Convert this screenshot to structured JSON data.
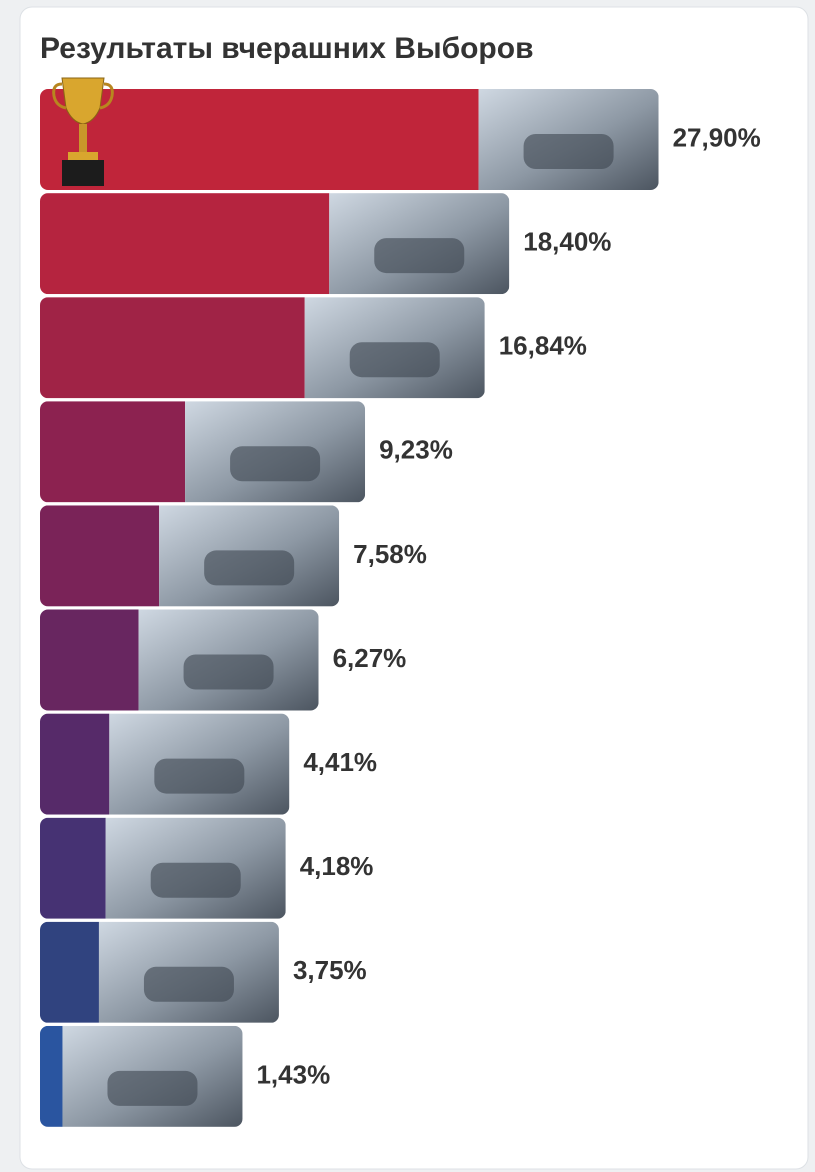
{
  "chart_data": {
    "type": "bar",
    "orientation": "horizontal",
    "title": "Результаты вчерашних Выборов",
    "values": [
      27.9,
      18.4,
      16.84,
      9.23,
      7.58,
      6.27,
      4.41,
      4.18,
      3.75,
      1.43
    ],
    "value_labels": [
      "27,90%",
      "18,40%",
      "16,84%",
      "9,23%",
      "7,58%",
      "6,27%",
      "4,41%",
      "4,18%",
      "3,75%",
      "1,43%"
    ],
    "colors": [
      "#c0253a",
      "#b5243f",
      "#a02346",
      "#8c2250",
      "#7a2358",
      "#682660",
      "#562a69",
      "#463273",
      "#30437f",
      "#2a55a0"
    ]
  }
}
